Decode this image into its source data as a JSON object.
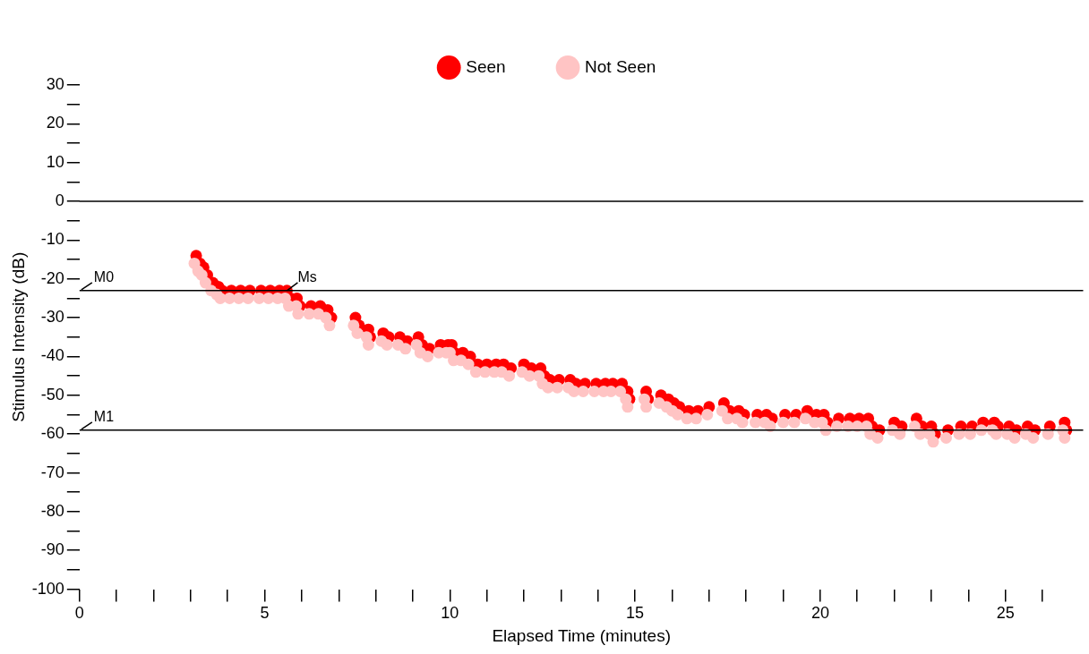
{
  "chart_data": {
    "type": "scatter",
    "xlabel": "Elapsed Time (minutes)",
    "ylabel": "Stimulus Intensity (dB)",
    "xlim": [
      0,
      27.1
    ],
    "ylim": [
      -100,
      30
    ],
    "xticks": [
      0,
      {
        "value": 1,
        "label": null
      },
      {
        "value": 2,
        "label": null
      },
      {
        "value": 3,
        "label": null
      },
      {
        "value": 4,
        "label": null
      },
      5,
      {
        "value": 6,
        "label": null
      },
      {
        "value": 7,
        "label": null
      },
      {
        "value": 8,
        "label": null
      },
      {
        "value": 9,
        "label": null
      },
      10,
      {
        "value": 11,
        "label": null
      },
      {
        "value": 12,
        "label": null
      },
      {
        "value": 13,
        "label": null
      },
      {
        "value": 14,
        "label": null
      },
      15,
      {
        "value": 16,
        "label": null
      },
      {
        "value": 17,
        "label": null
      },
      {
        "value": 18,
        "label": null
      },
      {
        "value": 19,
        "label": null
      },
      20,
      {
        "value": 21,
        "label": null
      },
      {
        "value": 22,
        "label": null
      },
      {
        "value": 23,
        "label": null
      },
      {
        "value": 24,
        "label": null
      },
      25,
      {
        "value": 26,
        "label": null
      }
    ],
    "yticks": [
      -100,
      {
        "value": -95,
        "label": null
      },
      -90,
      {
        "value": -85,
        "label": null
      },
      -80,
      {
        "value": -75,
        "label": null
      },
      -70,
      {
        "value": -65,
        "label": null
      },
      -60,
      {
        "value": -55,
        "label": null
      },
      -50,
      {
        "value": -45,
        "label": null
      },
      -40,
      {
        "value": -35,
        "label": null
      },
      -30,
      {
        "value": -25,
        "label": null
      },
      -20,
      {
        "value": -15,
        "label": null
      },
      -10,
      {
        "value": -5,
        "label": null
      },
      0,
      {
        "value": 5,
        "label": null
      },
      10,
      {
        "value": 15,
        "label": null
      },
      20,
      {
        "value": 25,
        "label": null
      },
      30
    ],
    "grid": false,
    "legend": "top",
    "marker": "circle",
    "ref_lines": [
      {
        "axis": "y",
        "value": 0,
        "label": null,
        "color": "#000000"
      },
      {
        "axis": "y",
        "value": -23,
        "label": "M0",
        "color": "#000000"
      },
      {
        "axis": "y",
        "value": -59,
        "label": "M1",
        "color": "#000000"
      }
    ],
    "annotations": [
      {
        "text": "Ms",
        "x": 5.6,
        "y": -23
      }
    ],
    "series": [
      {
        "name": "Not Seen",
        "color": "#ffc4c4",
        "x": [
          3.1,
          3.2,
          3.3,
          3.4,
          3.55,
          3.7,
          3.8,
          4.05,
          4.3,
          4.55,
          4.85,
          5.1,
          5.35,
          5.55,
          5.65,
          5.85,
          5.9,
          6.2,
          6.45,
          6.65,
          6.75,
          7.4,
          7.5,
          7.75,
          7.8,
          8.15,
          8.3,
          8.6,
          8.8,
          9.1,
          9.2,
          9.4,
          9.7,
          9.9,
          10.0,
          10.1,
          10.3,
          10.5,
          10.7,
          10.95,
          11.2,
          11.4,
          11.6,
          11.95,
          12.15,
          12.4,
          12.5,
          12.65,
          12.9,
          13.2,
          13.35,
          13.6,
          13.9,
          14.15,
          14.35,
          14.6,
          14.75,
          14.8,
          15.25,
          15.3,
          15.65,
          15.85,
          16.0,
          16.15,
          16.4,
          16.65,
          16.95,
          17.35,
          17.5,
          17.75,
          17.9,
          18.25,
          18.5,
          18.65,
          19.0,
          19.3,
          19.6,
          19.85,
          20.05,
          20.15,
          20.45,
          20.75,
          21.0,
          21.25,
          21.35,
          21.55,
          21.95,
          22.15,
          22.55,
          22.7,
          22.95,
          23.05,
          23.4,
          23.75,
          24.05,
          24.35,
          24.65,
          24.75,
          25.05,
          25.25,
          25.55,
          25.75,
          26.15,
          26.55,
          26.6
        ],
        "values": [
          -16,
          -18,
          -19,
          -21,
          -23,
          -24,
          -25,
          -25,
          -25,
          -25,
          -25,
          -25,
          -25,
          -25,
          -27,
          -27,
          -29,
          -29,
          -29,
          -30,
          -32,
          -32,
          -34,
          -35,
          -37,
          -36,
          -37,
          -37,
          -38,
          -37,
          -39,
          -40,
          -39,
          -39,
          -39,
          -41,
          -41,
          -42,
          -44,
          -44,
          -44,
          -44,
          -45,
          -44,
          -45,
          -45,
          -47,
          -48,
          -48,
          -48,
          -49,
          -49,
          -49,
          -49,
          -49,
          -49,
          -51,
          -53,
          -51,
          -53,
          -52,
          -53,
          -54,
          -55,
          -56,
          -56,
          -55,
          -54,
          -56,
          -56,
          -57,
          -57,
          -57,
          -58,
          -57,
          -57,
          -56,
          -57,
          -57,
          -59,
          -58,
          -58,
          -58,
          -58,
          -60,
          -61,
          -59,
          -60,
          -58,
          -60,
          -60,
          -62,
          -61,
          -60,
          -60,
          -59,
          -59,
          -60,
          -60,
          -61,
          -60,
          -61,
          -60,
          -59,
          -61
        ]
      },
      {
        "name": "Seen",
        "color": "#ff0000",
        "x": [
          3.15,
          3.25,
          3.35,
          3.45,
          3.6,
          3.75,
          3.85,
          4.1,
          4.35,
          4.6,
          4.9,
          5.15,
          5.4,
          5.6,
          5.7,
          5.87,
          5.95,
          6.25,
          6.5,
          6.7,
          6.8,
          7.45,
          7.55,
          7.8,
          7.85,
          8.2,
          8.35,
          8.65,
          8.85,
          9.15,
          9.25,
          9.45,
          9.75,
          9.95,
          10.05,
          10.12,
          10.35,
          10.55,
          10.75,
          11.0,
          11.25,
          11.45,
          11.65,
          12.0,
          12.2,
          12.45,
          12.55,
          12.7,
          12.95,
          13.25,
          13.4,
          13.65,
          13.95,
          14.2,
          14.4,
          14.65,
          14.8,
          14.85,
          15.3,
          15.35,
          15.7,
          15.9,
          16.05,
          16.2,
          16.45,
          16.7,
          17.0,
          17.4,
          17.55,
          17.8,
          17.95,
          18.3,
          18.55,
          18.7,
          19.05,
          19.35,
          19.65,
          19.9,
          20.1,
          20.2,
          20.5,
          20.8,
          21.05,
          21.3,
          21.4,
          21.6,
          22.0,
          22.2,
          22.6,
          22.75,
          23.0,
          23.1,
          23.45,
          23.8,
          24.1,
          24.4,
          24.7,
          24.8,
          25.1,
          25.3,
          25.6,
          25.8,
          26.2,
          26.6,
          26.65
        ],
        "values": [
          -14,
          -16,
          -17,
          -19,
          -21,
          -22,
          -23,
          -23,
          -23,
          -23,
          -23,
          -23,
          -23,
          -23,
          -25,
          -25,
          -27,
          -27,
          -27,
          -28,
          -30,
          -30,
          -32,
          -33,
          -35,
          -34,
          -35,
          -35,
          -36,
          -35,
          -37,
          -38,
          -37,
          -37,
          -37,
          -39,
          -39,
          -40,
          -42,
          -42,
          -42,
          -42,
          -43,
          -42,
          -43,
          -43,
          -45,
          -46,
          -46,
          -46,
          -47,
          -47,
          -47,
          -47,
          -47,
          -47,
          -49,
          -51,
          -49,
          -51,
          -50,
          -51,
          -52,
          -53,
          -54,
          -54,
          -53,
          -52,
          -54,
          -54,
          -55,
          -55,
          -55,
          -56,
          -55,
          -55,
          -54,
          -55,
          -55,
          -57,
          -56,
          -56,
          -56,
          -56,
          -58,
          -59,
          -57,
          -58,
          -56,
          -58,
          -58,
          -60,
          -59,
          -58,
          -58,
          -57,
          -57,
          -58,
          -58,
          -59,
          -58,
          -59,
          -58,
          -57,
          -59
        ]
      }
    ]
  }
}
